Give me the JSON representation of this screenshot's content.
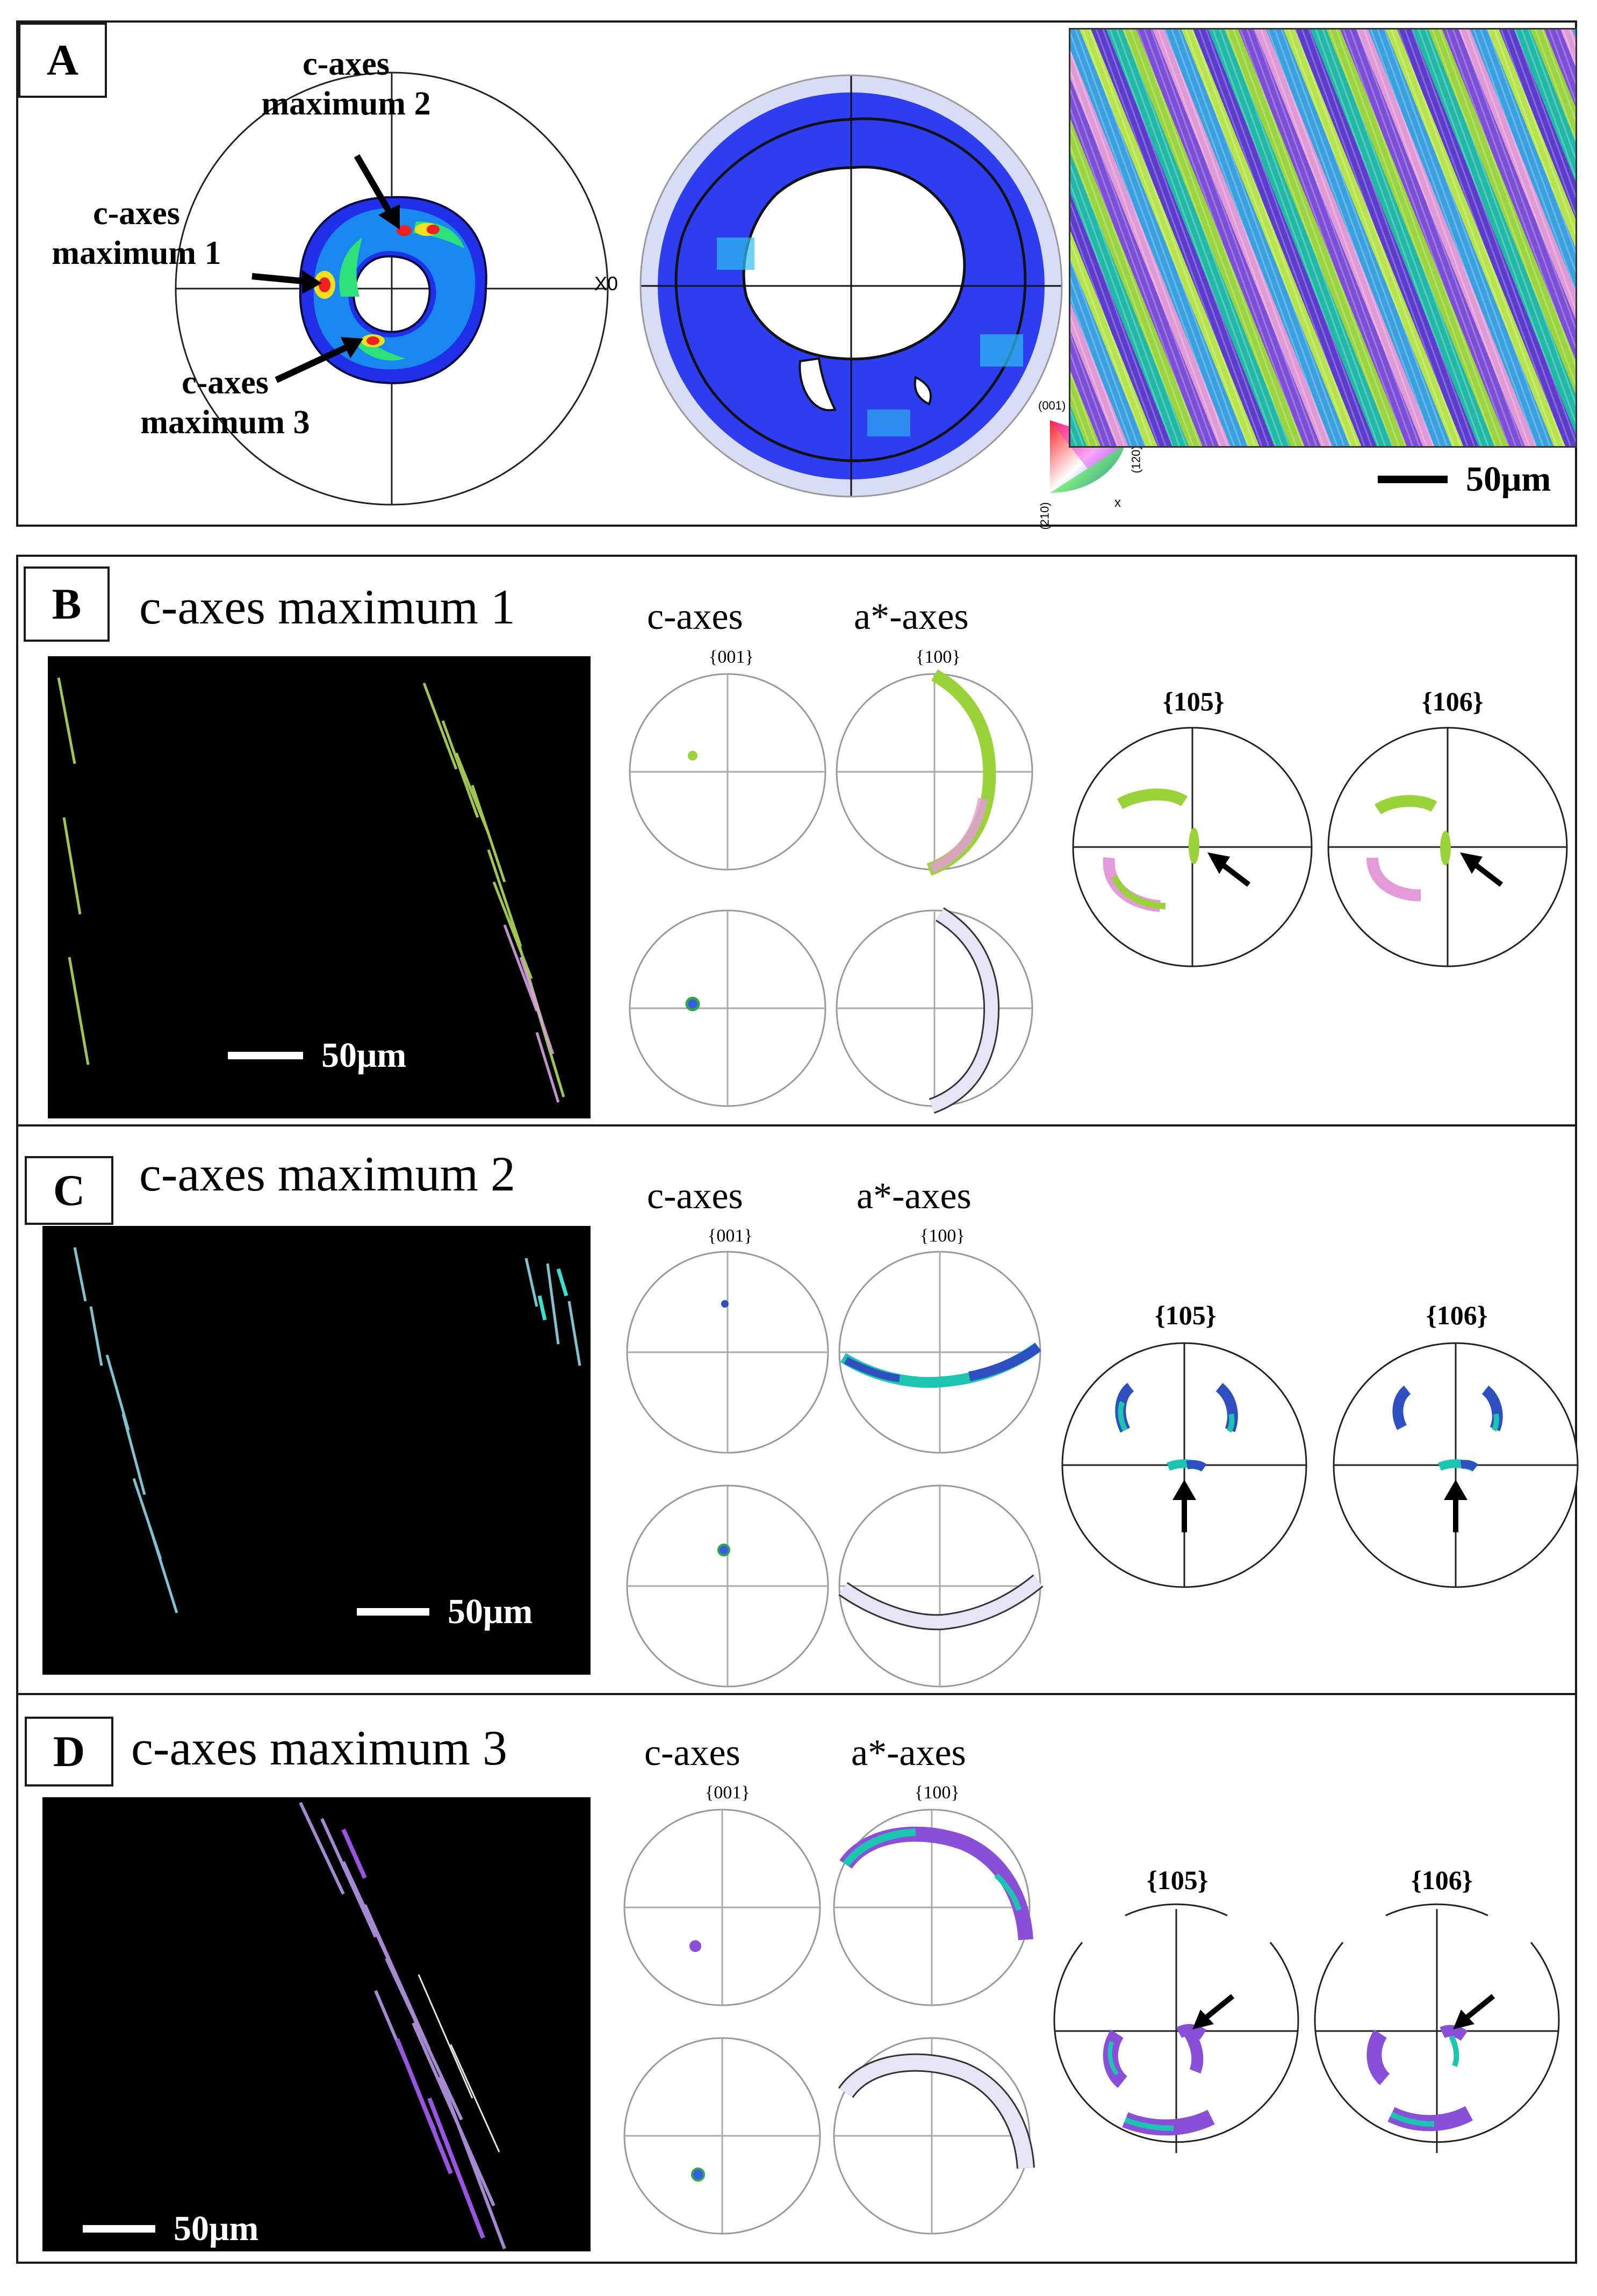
{
  "panels": {
    "A": {
      "letter": "A",
      "annotations": [
        "c-axes\nmaximum 2",
        "c-axes\nmaximum 1",
        "c-axes\nmaximum 3"
      ],
      "x0_label": "X0",
      "ipf_key": {
        "top": "(001)",
        "right": "(120)",
        "bottom_left": "(210)",
        "x": "x"
      },
      "scale_bar": "50μm"
    },
    "B": {
      "letter": "B",
      "title": "c-axes maximum 1",
      "c_axes_label": "c-axes",
      "a_axes_label": "a*-axes",
      "c_pole": "{001}",
      "a_pole": "{100}",
      "pf1": "{105}",
      "pf2": "{106}",
      "scale_bar": "50μm"
    },
    "C": {
      "letter": "C",
      "title": "c-axes maximum 2",
      "c_axes_label": "c-axes",
      "a_axes_label": "a*-axes",
      "c_pole": "{001}",
      "a_pole": "{100}",
      "pf1": "{105}",
      "pf2": "{106}",
      "scale_bar": "50μm"
    },
    "D": {
      "letter": "D",
      "title": "c-axes maximum 3",
      "c_axes_label": "c-axes",
      "a_axes_label": "a*-axes",
      "c_pole": "{001}",
      "a_pole": "{100}",
      "pf1": "{105}",
      "pf2": "{106}",
      "scale_bar": "50μm"
    }
  },
  "colors": {
    "frame": "#1a1a1a",
    "blue_fill": "#1f2ee8",
    "lime": "#9ad23a",
    "pink": "#e49ad8",
    "teal": "#1bc5b0",
    "violet": "#8a4fd9"
  }
}
